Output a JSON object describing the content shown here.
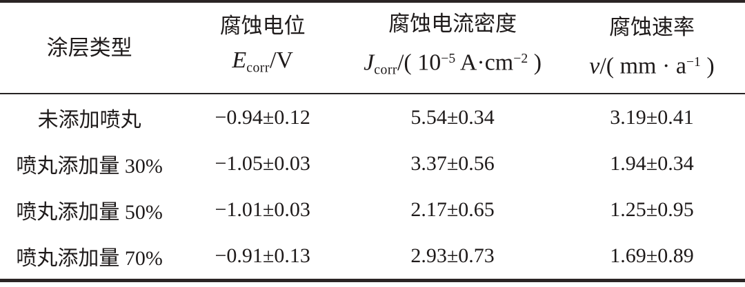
{
  "table": {
    "header": {
      "col1": {
        "title": "涂层类型"
      },
      "col2": {
        "title": "腐蚀电位",
        "formula": [
          [
            "i",
            "E"
          ],
          [
            "sub",
            "corr"
          ],
          [
            "n",
            "/V"
          ]
        ]
      },
      "col3": {
        "title": "腐蚀电流密度",
        "formula": [
          [
            "i",
            "J"
          ],
          [
            "sub",
            "corr"
          ],
          [
            "n",
            "/( 10"
          ],
          [
            "sup",
            "−5"
          ],
          [
            "n",
            " A·cm"
          ],
          [
            "sup",
            "−2"
          ],
          [
            "n",
            " )"
          ]
        ]
      },
      "col4": {
        "title": "腐蚀速率",
        "formula": [
          [
            "i",
            "v"
          ],
          [
            "n",
            "/( mm · a"
          ],
          [
            "sup",
            "−1"
          ],
          [
            "n",
            " )"
          ]
        ]
      }
    },
    "rows": [
      {
        "label": "未添加喷丸",
        "ecorr": "−0.94±0.12",
        "jcorr": "5.54±0.34",
        "rate": "3.19±0.41"
      },
      {
        "label": "喷丸添加量 30%",
        "ecorr": "−1.05±0.03",
        "jcorr": "3.37±0.56",
        "rate": "1.94±0.34"
      },
      {
        "label": "喷丸添加量 50%",
        "ecorr": "−1.01±0.03",
        "jcorr": "2.17±0.65",
        "rate": "1.25±0.95"
      },
      {
        "label": "喷丸添加量 70%",
        "ecorr": "−0.91±0.13",
        "jcorr": "2.93±0.73",
        "rate": "1.69±0.89"
      }
    ]
  },
  "colors": {
    "text": "#1e1a1a",
    "rule": "#2b2424",
    "background": "#ffffff"
  },
  "chart_data": {
    "type": "table",
    "columns": [
      "涂层类型",
      "腐蚀电位 E_corr/V",
      "腐蚀电流密度 J_corr/(10^−5 A·cm^−2)",
      "腐蚀速率 v/(mm·a^−1)"
    ],
    "rows": [
      [
        "未添加喷丸",
        "−0.94±0.12",
        "5.54±0.34",
        "3.19±0.41"
      ],
      [
        "喷丸添加量 30%",
        "−1.05±0.03",
        "3.37±0.56",
        "1.94±0.34"
      ],
      [
        "喷丸添加量 50%",
        "−1.01±0.03",
        "2.17±0.65",
        "1.25±0.95"
      ],
      [
        "喷丸添加量 70%",
        "−0.91±0.13",
        "2.93±0.73",
        "1.69±0.89"
      ]
    ]
  }
}
